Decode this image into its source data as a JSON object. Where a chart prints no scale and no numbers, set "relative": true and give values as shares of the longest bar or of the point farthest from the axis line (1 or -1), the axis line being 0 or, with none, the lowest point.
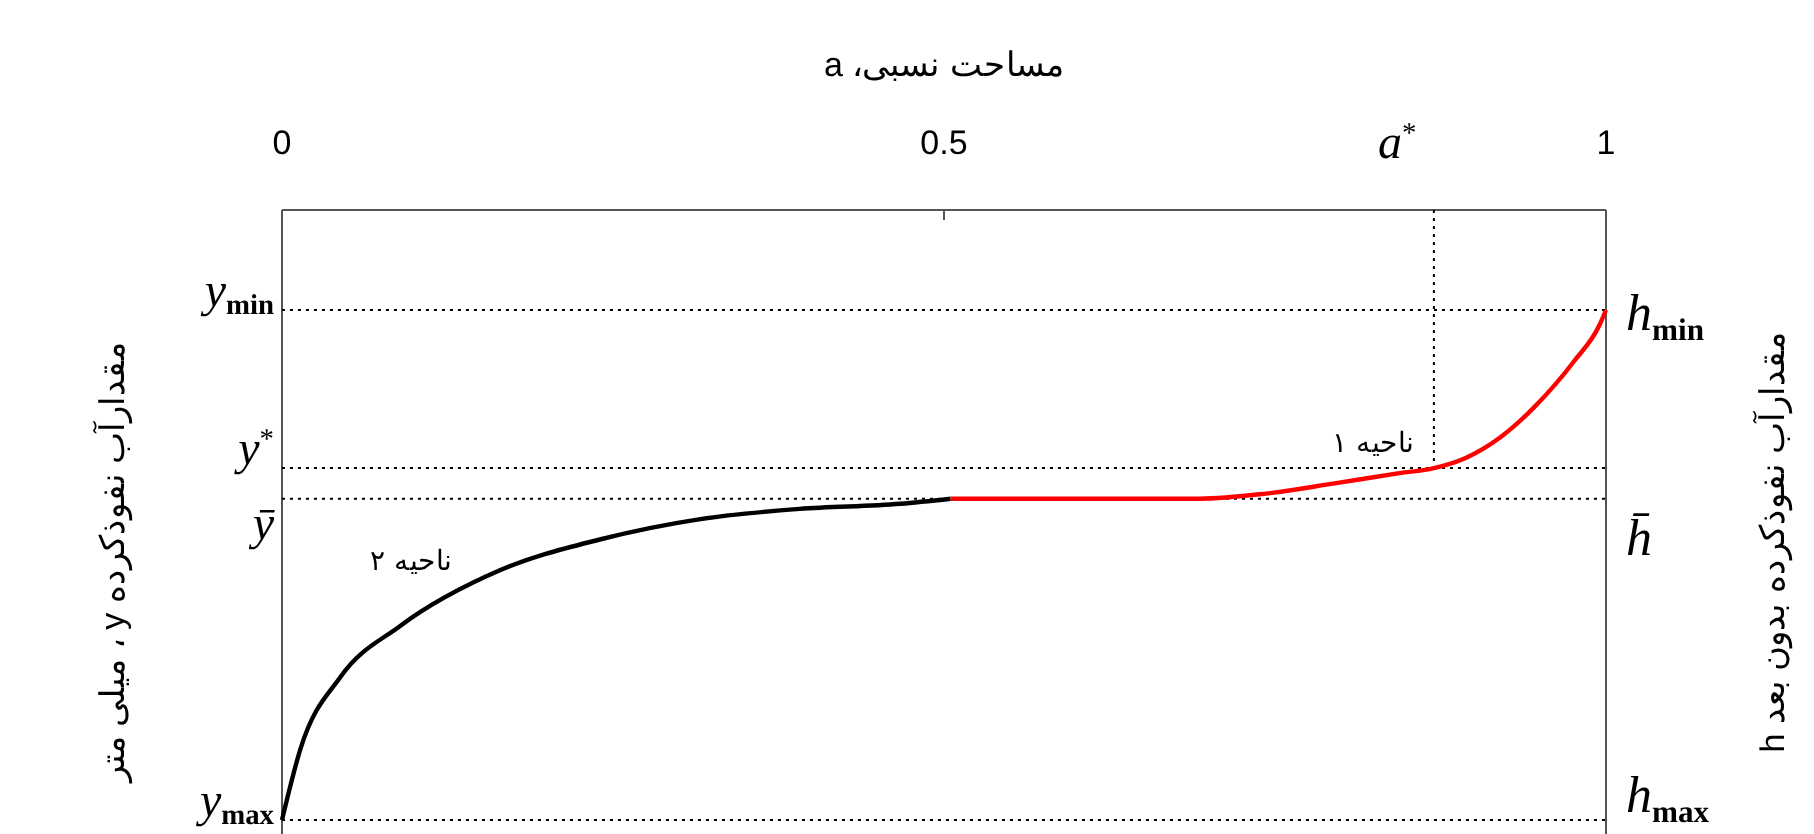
{
  "chart_data": {
    "type": "line",
    "relative": true,
    "xlabel": "مساحت نسبی، a",
    "ylabel": "مقدارآب نفوذکرده y ، میلی متر",
    "y2label": "مقدارآب نفوذکرده بدون بعد h",
    "xlim": [
      0,
      1
    ],
    "xticks": [
      0,
      0.5,
      1
    ],
    "grid": false,
    "marker": "none",
    "line_style": "solid",
    "series": [
      {
        "name": "ناحیه ۲",
        "color": "#000000",
        "x": [
          0,
          0.014,
          0.044,
          0.089,
          0.165,
          0.24,
          0.316,
          0.391,
          0.467,
          0.505
        ],
        "values": [
          0,
          0.14,
          0.28,
          0.38,
          0.49,
          0.55,
          0.59,
          0.61,
          0.62,
          0.63
        ]
      },
      {
        "name": "ناحیه ۱",
        "color": "#ff0000",
        "x": [
          0.505,
          0.618,
          0.693,
          0.743,
          0.795,
          0.844,
          0.87,
          0.894,
          0.92,
          0.946,
          0.976,
          0.995,
          1
        ],
        "values": [
          0.63,
          0.63,
          0.63,
          0.64,
          0.66,
          0.68,
          0.69,
          0.71,
          0.75,
          0.81,
          0.9,
          0.97,
          1
        ]
      }
    ],
    "ref_lines": [
      {
        "axis": "y",
        "value": 1,
        "label": "y$_{min}$",
        "line_style": "dotted"
      },
      {
        "axis": "y",
        "value": 0.69,
        "label": "y$^{*}$",
        "line_style": "dotted"
      },
      {
        "axis": "y",
        "value": 0.63,
        "label": "ȳ",
        "line_style": "dotted"
      },
      {
        "axis": "y",
        "value": 0,
        "label": "y$_{max}$",
        "line_style": "dotted"
      },
      {
        "axis": "x",
        "value": 0.87,
        "label": "a$^{*}$",
        "line_style": "dotted"
      }
    ],
    "annotations": [
      "h$_{min}$",
      "h̄",
      "h$_{max}$"
    ]
  }
}
